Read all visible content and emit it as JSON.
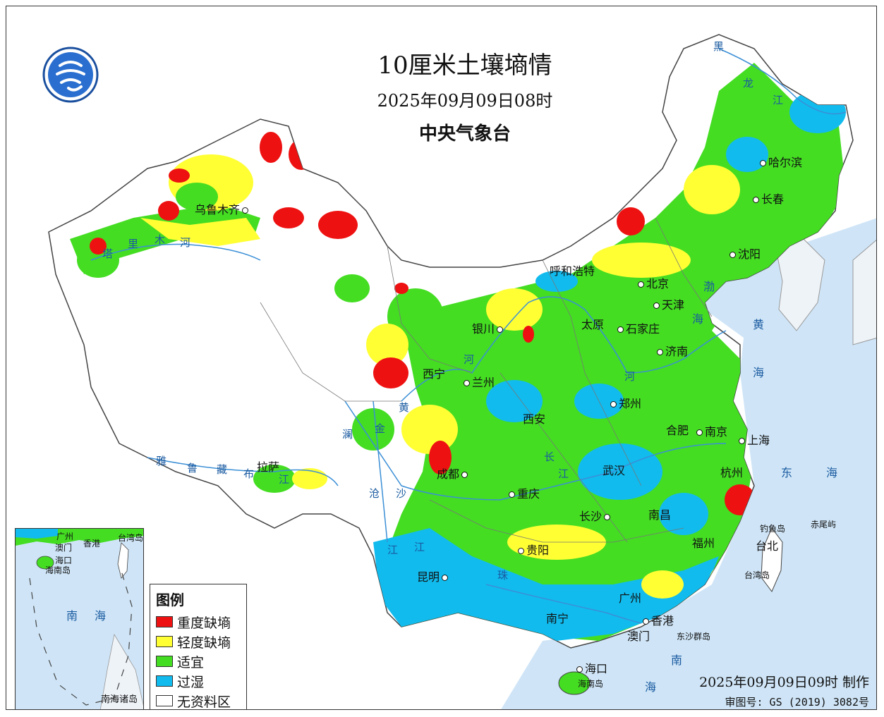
{
  "header": {
    "title": "10厘米土壤墒情",
    "datetime": "2025年09月09日08时",
    "agency": "中央气象台"
  },
  "legend": {
    "title": "图例",
    "items": [
      {
        "label": "重度缺墒",
        "color": "#ee1111"
      },
      {
        "label": "轻度缺墒",
        "color": "#ffff33"
      },
      {
        "label": "适宜",
        "color": "#44dd22"
      },
      {
        "label": "过湿",
        "color": "#11bbee"
      },
      {
        "label": "无资料区",
        "color": "#ffffff"
      }
    ]
  },
  "colors": {
    "sea": "#cfe5f7",
    "neighbor_land": "#eef3f8",
    "no_data": "#ffffff",
    "border": "#555555",
    "river": "#3b8fd6"
  },
  "cities": [
    {
      "name": "哈尔滨"
    },
    {
      "name": "长春"
    },
    {
      "name": "沈阳"
    },
    {
      "name": "呼和浩特"
    },
    {
      "name": "北京"
    },
    {
      "name": "天津"
    },
    {
      "name": "银川"
    },
    {
      "name": "太原"
    },
    {
      "name": "石家庄"
    },
    {
      "name": "济南"
    },
    {
      "name": "西宁"
    },
    {
      "name": "兰州"
    },
    {
      "name": "郑州"
    },
    {
      "name": "西安"
    },
    {
      "name": "合肥"
    },
    {
      "name": "南京"
    },
    {
      "name": "上海"
    },
    {
      "name": "杭州"
    },
    {
      "name": "武汉"
    },
    {
      "name": "成都"
    },
    {
      "name": "重庆"
    },
    {
      "name": "长沙"
    },
    {
      "name": "南昌"
    },
    {
      "name": "福州"
    },
    {
      "name": "台北"
    },
    {
      "name": "贵阳"
    },
    {
      "name": "昆明"
    },
    {
      "name": "广州"
    },
    {
      "name": "南宁"
    },
    {
      "name": "香港"
    },
    {
      "name": "澳门"
    },
    {
      "name": "海口"
    },
    {
      "name": "拉萨"
    },
    {
      "name": "乌鲁木齐"
    }
  ],
  "seas": [
    "渤",
    "海",
    "黄",
    "海",
    "东",
    "海",
    "南",
    "海"
  ],
  "rivers": [
    "黑",
    "龙",
    "江",
    "塔",
    "里",
    "木",
    "河",
    "黄",
    "河",
    "河",
    "雅",
    "鲁",
    "藏",
    "布",
    "江",
    "金",
    "沙",
    "澜",
    "沧",
    "江",
    "长",
    "江",
    "珠",
    "江"
  ],
  "islands": [
    "钓鱼岛",
    "赤尾屿",
    "台湾岛",
    "东沙群岛",
    "海南岛"
  ],
  "inset": {
    "caption": "南海诸岛",
    "labels": [
      "广州",
      "香港",
      "澳门",
      "海口",
      "海南岛",
      "台湾岛",
      "南",
      "海"
    ]
  },
  "footer": {
    "made": "2025年09月09日09时 制作",
    "review": "审图号: GS (2019) 3082号"
  }
}
